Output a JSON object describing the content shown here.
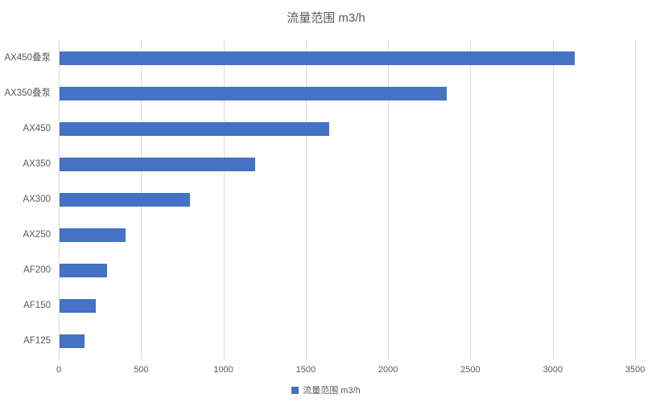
{
  "chart_data": {
    "type": "bar",
    "orientation": "horizontal",
    "title": "流量范围 m3/h",
    "legend": "流量范围 m3/h",
    "legend_position": "bottom",
    "categories": [
      "AX450叠泵",
      "AX350叠泵",
      "AX450",
      "AX350",
      "AX300",
      "AX250",
      "AF200",
      "AF150",
      "AF125"
    ],
    "values": [
      3130,
      2350,
      1640,
      1190,
      790,
      400,
      290,
      220,
      150
    ],
    "xlabel": "",
    "ylabel": "",
    "xlim": [
      0,
      3500
    ],
    "xticks": [
      0,
      500,
      1000,
      1500,
      2000,
      2500,
      3000,
      3500
    ],
    "grid": true,
    "bar_color": "#4472c4",
    "gridline_color": "#d9d9d9",
    "text_color": "#595959",
    "background_color": "#ffffff"
  }
}
